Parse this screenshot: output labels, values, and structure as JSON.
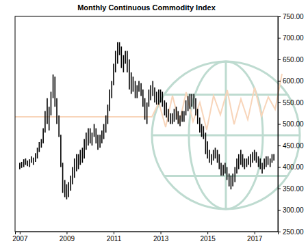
{
  "chart_data": {
    "type": "range",
    "title": "Monthly Continuous Commodity Index",
    "color": "#000000",
    "grid": false,
    "x": [
      2007.0,
      2007.08,
      2007.17,
      2007.25,
      2007.33,
      2007.42,
      2007.5,
      2007.58,
      2007.67,
      2007.75,
      2007.83,
      2007.92,
      2008.0,
      2008.08,
      2008.17,
      2008.25,
      2008.33,
      2008.42,
      2008.5,
      2008.58,
      2008.67,
      2008.75,
      2008.83,
      2008.92,
      2009.0,
      2009.08,
      2009.17,
      2009.25,
      2009.33,
      2009.42,
      2009.5,
      2009.58,
      2009.67,
      2009.75,
      2009.83,
      2009.92,
      2010.0,
      2010.08,
      2010.17,
      2010.25,
      2010.33,
      2010.42,
      2010.5,
      2010.58,
      2010.67,
      2010.75,
      2010.83,
      2010.92,
      2011.0,
      2011.08,
      2011.17,
      2011.25,
      2011.33,
      2011.42,
      2011.5,
      2011.58,
      2011.67,
      2011.75,
      2011.83,
      2011.92,
      2012.0,
      2012.08,
      2012.17,
      2012.25,
      2012.33,
      2012.42,
      2012.5,
      2012.58,
      2012.67,
      2012.75,
      2012.83,
      2012.92,
      2013.0,
      2013.08,
      2013.17,
      2013.25,
      2013.33,
      2013.42,
      2013.5,
      2013.58,
      2013.67,
      2013.75,
      2013.83,
      2013.92,
      2014.0,
      2014.08,
      2014.17,
      2014.25,
      2014.33,
      2014.42,
      2014.5,
      2014.58,
      2014.67,
      2014.75,
      2014.83,
      2014.92,
      2015.0,
      2015.08,
      2015.17,
      2015.25,
      2015.33,
      2015.42,
      2015.5,
      2015.58,
      2015.67,
      2015.75,
      2015.83,
      2015.92,
      2016.0,
      2016.08,
      2016.17,
      2016.25,
      2016.33,
      2016.42,
      2016.5,
      2016.58,
      2016.67,
      2016.75,
      2016.83,
      2016.92,
      2017.0,
      2017.08,
      2017.17,
      2017.25,
      2017.33,
      2017.42,
      2017.5,
      2017.58,
      2017.67,
      2017.75,
      2017.83
    ],
    "low": [
      395,
      398,
      400,
      405,
      402,
      400,
      410,
      405,
      412,
      420,
      435,
      445,
      455,
      480,
      500,
      485,
      520,
      560,
      540,
      500,
      470,
      400,
      340,
      330,
      325,
      330,
      345,
      360,
      375,
      390,
      395,
      405,
      410,
      420,
      440,
      450,
      455,
      450,
      470,
      455,
      440,
      445,
      455,
      465,
      480,
      500,
      530,
      560,
      590,
      620,
      640,
      660,
      630,
      620,
      640,
      620,
      580,
      570,
      575,
      560,
      560,
      575,
      565,
      540,
      510,
      500,
      540,
      555,
      565,
      550,
      545,
      545,
      550,
      540,
      520,
      515,
      505,
      500,
      500,
      505,
      510,
      500,
      495,
      505,
      505,
      520,
      530,
      535,
      540,
      535,
      520,
      500,
      480,
      470,
      465,
      430,
      420,
      410,
      405,
      415,
      420,
      410,
      395,
      380,
      380,
      385,
      370,
      355,
      348,
      355,
      365,
      385,
      395,
      405,
      400,
      395,
      400,
      405,
      400,
      410,
      415,
      410,
      400,
      395,
      385,
      395,
      400,
      405,
      400,
      410,
      415
    ],
    "high": [
      410,
      412,
      418,
      420,
      415,
      418,
      425,
      422,
      432,
      445,
      458,
      465,
      490,
      530,
      560,
      540,
      575,
      615,
      610,
      560,
      520,
      475,
      410,
      370,
      360,
      365,
      380,
      400,
      420,
      430,
      430,
      440,
      445,
      465,
      480,
      490,
      490,
      480,
      500,
      490,
      475,
      475,
      485,
      500,
      520,
      545,
      580,
      600,
      640,
      670,
      690,
      690,
      680,
      660,
      670,
      670,
      650,
      620,
      610,
      600,
      590,
      600,
      595,
      580,
      560,
      550,
      580,
      590,
      600,
      585,
      575,
      580,
      580,
      575,
      555,
      550,
      535,
      525,
      525,
      535,
      540,
      530,
      520,
      530,
      530,
      555,
      565,
      570,
      570,
      570,
      560,
      535,
      515,
      500,
      495,
      480,
      460,
      440,
      430,
      440,
      445,
      440,
      430,
      410,
      405,
      410,
      400,
      385,
      380,
      385,
      400,
      420,
      430,
      440,
      430,
      420,
      420,
      425,
      430,
      435,
      440,
      435,
      425,
      420,
      410,
      420,
      425,
      425,
      420,
      430,
      430
    ],
    "xlim": [
      2006.8,
      2018
    ],
    "xticks": [
      2007,
      2009,
      2011,
      2013,
      2015,
      2017
    ],
    "ylim": [
      250,
      750
    ],
    "yticks": [
      {
        "value": 250,
        "label": "250.00"
      },
      {
        "value": 300,
        "label": "300.00"
      },
      {
        "value": 350,
        "label": "350.00"
      },
      {
        "value": 400,
        "label": "400.00"
      },
      {
        "value": 450,
        "label": "450.00"
      },
      {
        "value": 500,
        "label": "500.00"
      },
      {
        "value": 550,
        "label": "550.00"
      },
      {
        "value": 600,
        "label": "600.00"
      },
      {
        "value": 650,
        "label": "650.00"
      },
      {
        "value": 700,
        "label": "700.00"
      },
      {
        "value": 750,
        "label": "750.00"
      }
    ]
  }
}
